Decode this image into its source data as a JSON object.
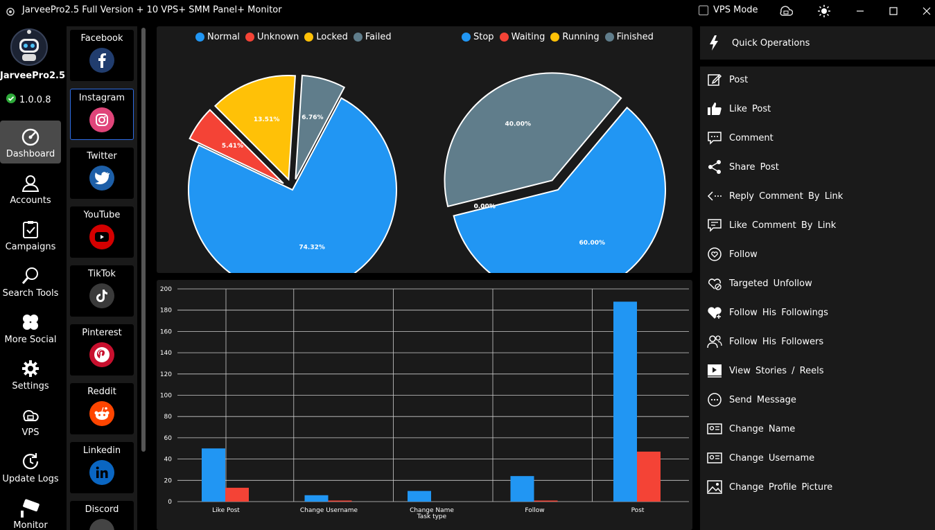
{
  "window": {
    "title": "JarveePro2.5 Full Version + 10 VPS+ SMM Panel+ Monitor",
    "vps_mode_label": "VPS Mode"
  },
  "brand": {
    "name": "JarveePro2.5",
    "version": "1.0.0.8"
  },
  "nav": [
    {
      "label": "Dashboard",
      "icon": "dashboard-icon"
    },
    {
      "label": "Accounts",
      "icon": "accounts-icon"
    },
    {
      "label": "Campaigns",
      "icon": "campaigns-icon"
    },
    {
      "label": "Search Tools",
      "icon": "search-icon"
    },
    {
      "label": "More Social",
      "icon": "more-social-icon"
    },
    {
      "label": "Settings",
      "icon": "gear-icon"
    },
    {
      "label": "VPS",
      "icon": "vps-cloud-icon"
    },
    {
      "label": "Update Logs",
      "icon": "update-icon"
    },
    {
      "label": "Monitor",
      "icon": "camera-icon"
    }
  ],
  "social": [
    {
      "label": "Facebook",
      "icon": "facebook-icon",
      "color": "#1f3a6e"
    },
    {
      "label": "Instagram",
      "icon": "instagram-icon",
      "color": "#e1306c"
    },
    {
      "label": "Twitter",
      "icon": "twitter-icon",
      "color": "#1d5fa8"
    },
    {
      "label": "YouTube",
      "icon": "youtube-icon",
      "color": "#d40000"
    },
    {
      "label": "TikTok",
      "icon": "tiktok-icon",
      "color": "#333333"
    },
    {
      "label": "Pinterest",
      "icon": "pinterest-icon",
      "color": "#c8102e"
    },
    {
      "label": "Reddit",
      "icon": "reddit-icon",
      "color": "#ff4500"
    },
    {
      "label": "Linkedin",
      "icon": "linkedin-icon",
      "color": "#0a66c2"
    },
    {
      "label": "Discord",
      "icon": "discord-icon",
      "color": "#444444"
    }
  ],
  "quick_ops": {
    "header": "Quick Operations",
    "items": [
      {
        "label": "Post",
        "icon": "post-icon"
      },
      {
        "label": "Like Post",
        "icon": "like-icon"
      },
      {
        "label": "Comment",
        "icon": "comment-icon"
      },
      {
        "label": "Share Post",
        "icon": "share-icon"
      },
      {
        "label": "Reply Comment By Link",
        "icon": "reply-icon"
      },
      {
        "label": "Like Comment By Link",
        "icon": "like-comment-icon"
      },
      {
        "label": "Follow",
        "icon": "follow-icon"
      },
      {
        "label": "Targeted Unfollow",
        "icon": "unfollow-icon"
      },
      {
        "label": "Follow His Followings",
        "icon": "heart-plus-icon"
      },
      {
        "label": "Follow His Followers",
        "icon": "users-icon"
      },
      {
        "label": "View Stories / Reels",
        "icon": "video-icon"
      },
      {
        "label": "Send Message",
        "icon": "message-icon"
      },
      {
        "label": "Change Name",
        "icon": "id-card-icon"
      },
      {
        "label": "Change Username",
        "icon": "id-card-icon"
      },
      {
        "label": "Change Profile Picture",
        "icon": "image-icon"
      }
    ]
  },
  "colors": {
    "blue": "#2196f3",
    "red": "#f44336",
    "yellow": "#ffc107",
    "gray": "#607d8b"
  },
  "chart_data": [
    {
      "type": "pie",
      "categories": [
        "Normal",
        "Unknown",
        "Locked",
        "Failed"
      ],
      "values": [
        74.32,
        5.41,
        13.51,
        6.76
      ],
      "labels": [
        "74.32%",
        "5.41%",
        "13.51%",
        "6.76%"
      ],
      "colors": [
        "#2196f3",
        "#f44336",
        "#ffc107",
        "#607d8b"
      ],
      "legend": "top"
    },
    {
      "type": "pie",
      "categories": [
        "Stop",
        "Waiting",
        "Running",
        "Finished"
      ],
      "values": [
        60.0,
        0.0,
        0.0,
        40.0
      ],
      "labels": [
        "60.00%",
        "0.00%",
        "0.00%",
        "40.00%"
      ],
      "colors": [
        "#2196f3",
        "#f44336",
        "#ffc107",
        "#607d8b"
      ],
      "legend": "top"
    },
    {
      "type": "bar",
      "categories": [
        "Like  Post",
        "Change  Username",
        "Change  Name",
        "Follow",
        "Post"
      ],
      "series": [
        {
          "values": [
            50,
            6,
            10,
            24,
            188
          ],
          "color": "#2196f3"
        },
        {
          "values": [
            13,
            1,
            0,
            1,
            47
          ],
          "color": "#f44336"
        }
      ],
      "xlabel": "Task type",
      "ylabel": "",
      "ylim": [
        0,
        200
      ],
      "yticks": [
        0,
        20,
        40,
        60,
        80,
        100,
        120,
        140,
        160,
        180,
        200
      ],
      "grid": true
    }
  ]
}
